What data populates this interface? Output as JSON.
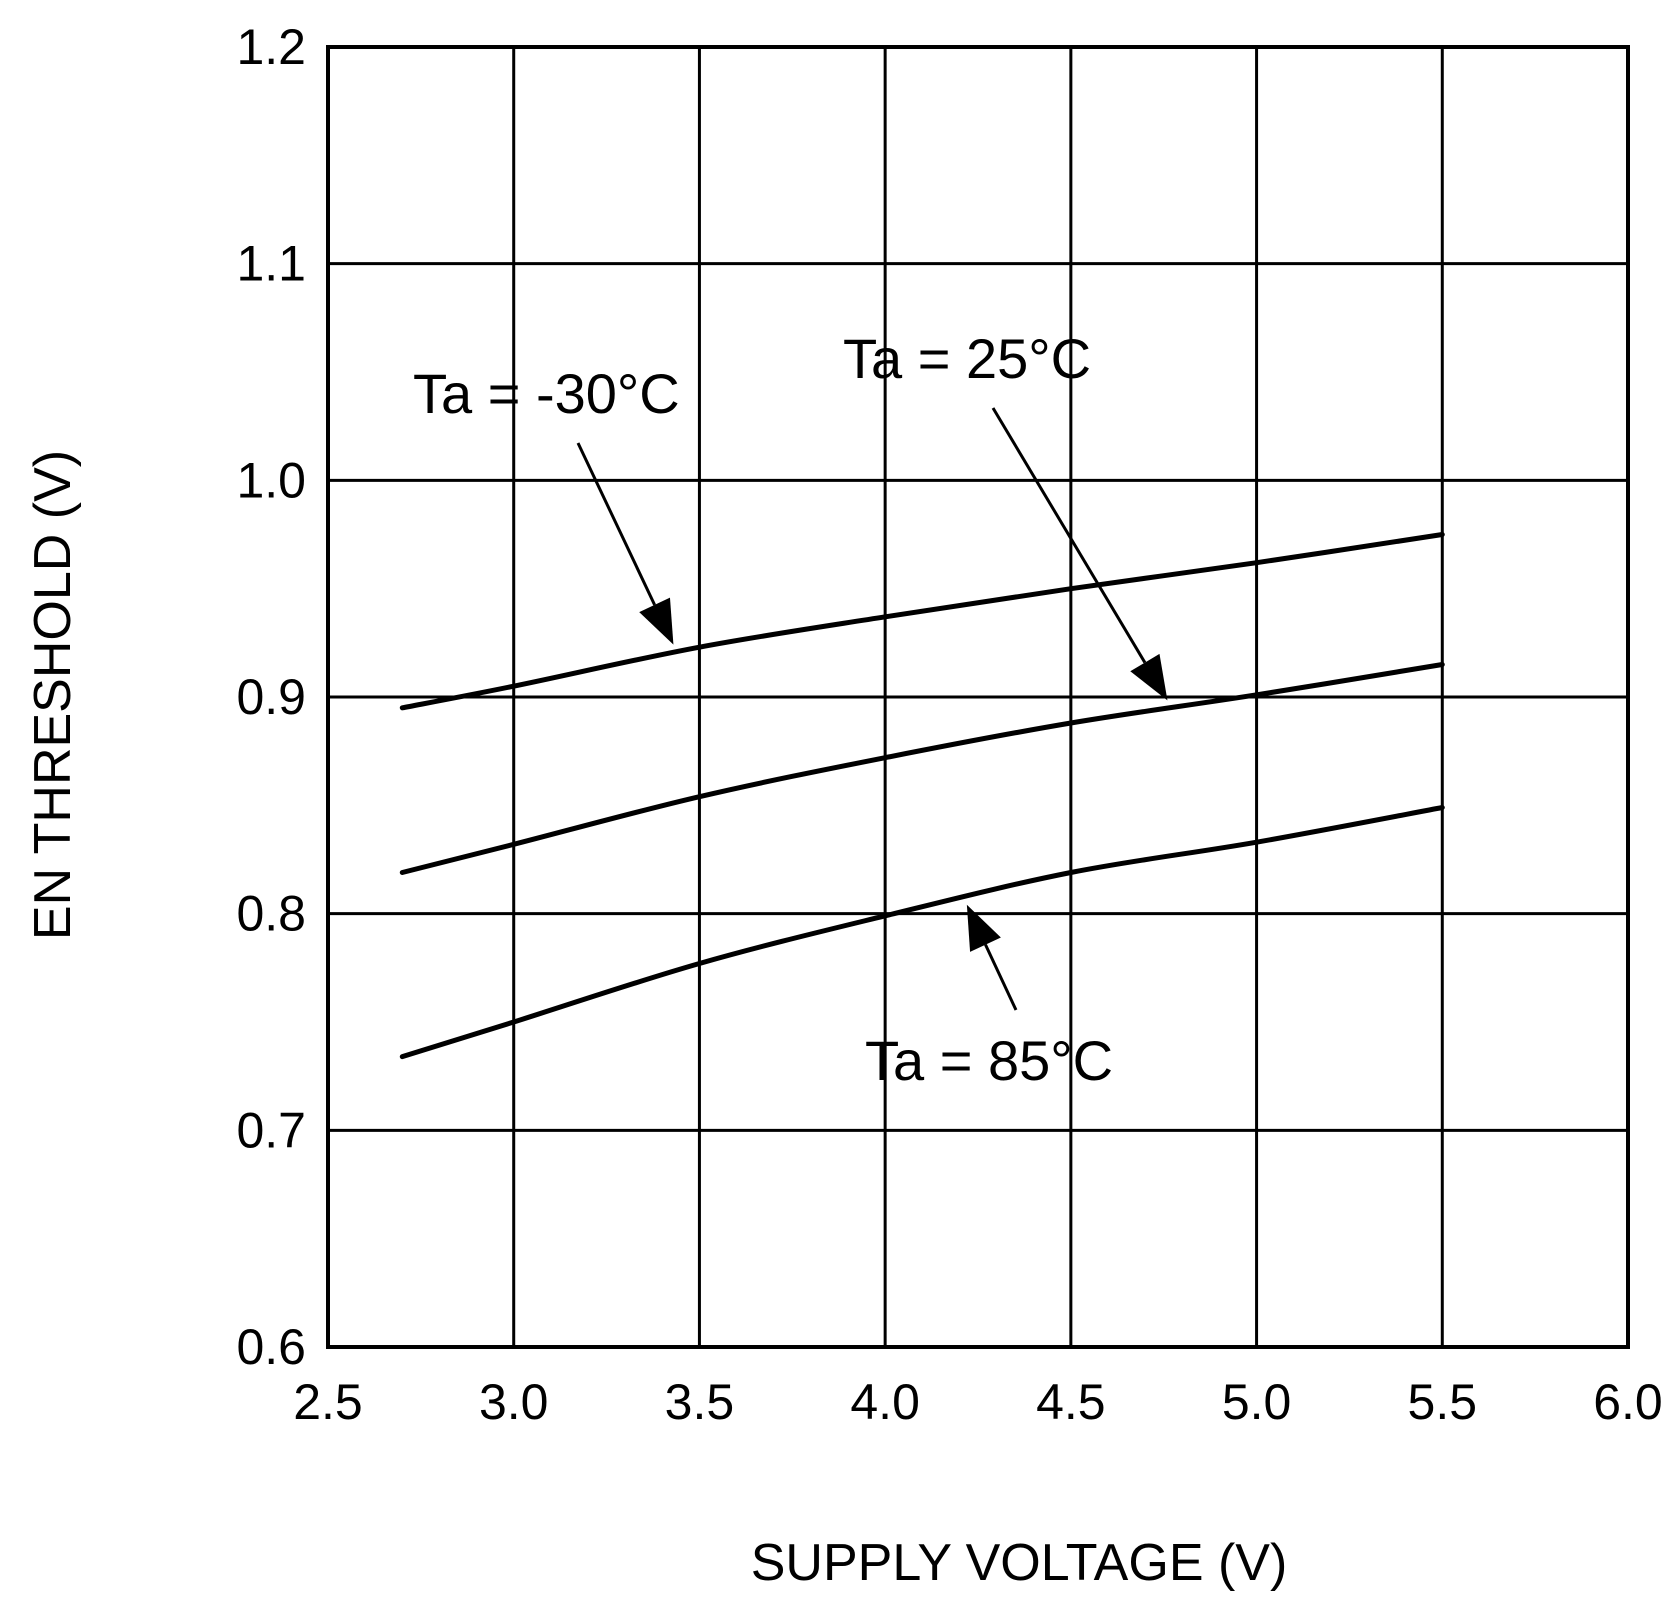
{
  "chart_data": {
    "type": "line",
    "title": "",
    "xlabel": "SUPPLY VOLTAGE (V)",
    "ylabel": "EN THRESHOLD (V)",
    "xlim": [
      2.5,
      6.0
    ],
    "ylim": [
      0.6,
      1.2
    ],
    "grid": true,
    "xticks": [
      "2.5",
      "3.0",
      "3.5",
      "4.0",
      "4.5",
      "5.0",
      "5.5",
      "6.0"
    ],
    "yticks": [
      "0.6",
      "0.7",
      "0.8",
      "0.9",
      "1.0",
      "1.1",
      "1.2"
    ],
    "series": [
      {
        "name": "Ta = -30°C",
        "x": [
          2.7,
          3.0,
          3.5,
          4.0,
          4.5,
          5.0,
          5.5
        ],
        "y": [
          0.895,
          0.905,
          0.923,
          0.937,
          0.95,
          0.962,
          0.975
        ]
      },
      {
        "name": "Ta = 25°C",
        "x": [
          2.7,
          3.0,
          3.5,
          4.0,
          4.5,
          5.0,
          5.5
        ],
        "y": [
          0.819,
          0.832,
          0.854,
          0.872,
          0.888,
          0.901,
          0.915
        ]
      },
      {
        "name": "Ta = 85°C",
        "x": [
          2.7,
          3.0,
          3.5,
          4.0,
          4.5,
          5.0,
          5.5
        ],
        "y": [
          0.734,
          0.75,
          0.777,
          0.799,
          0.819,
          0.833,
          0.849
        ]
      }
    ],
    "annotations": [
      {
        "text": "Ta = -30°C",
        "series": 0
      },
      {
        "text": "Ta = 25°C",
        "series": 1
      },
      {
        "text": "Ta = 85°C",
        "series": 2
      }
    ]
  }
}
